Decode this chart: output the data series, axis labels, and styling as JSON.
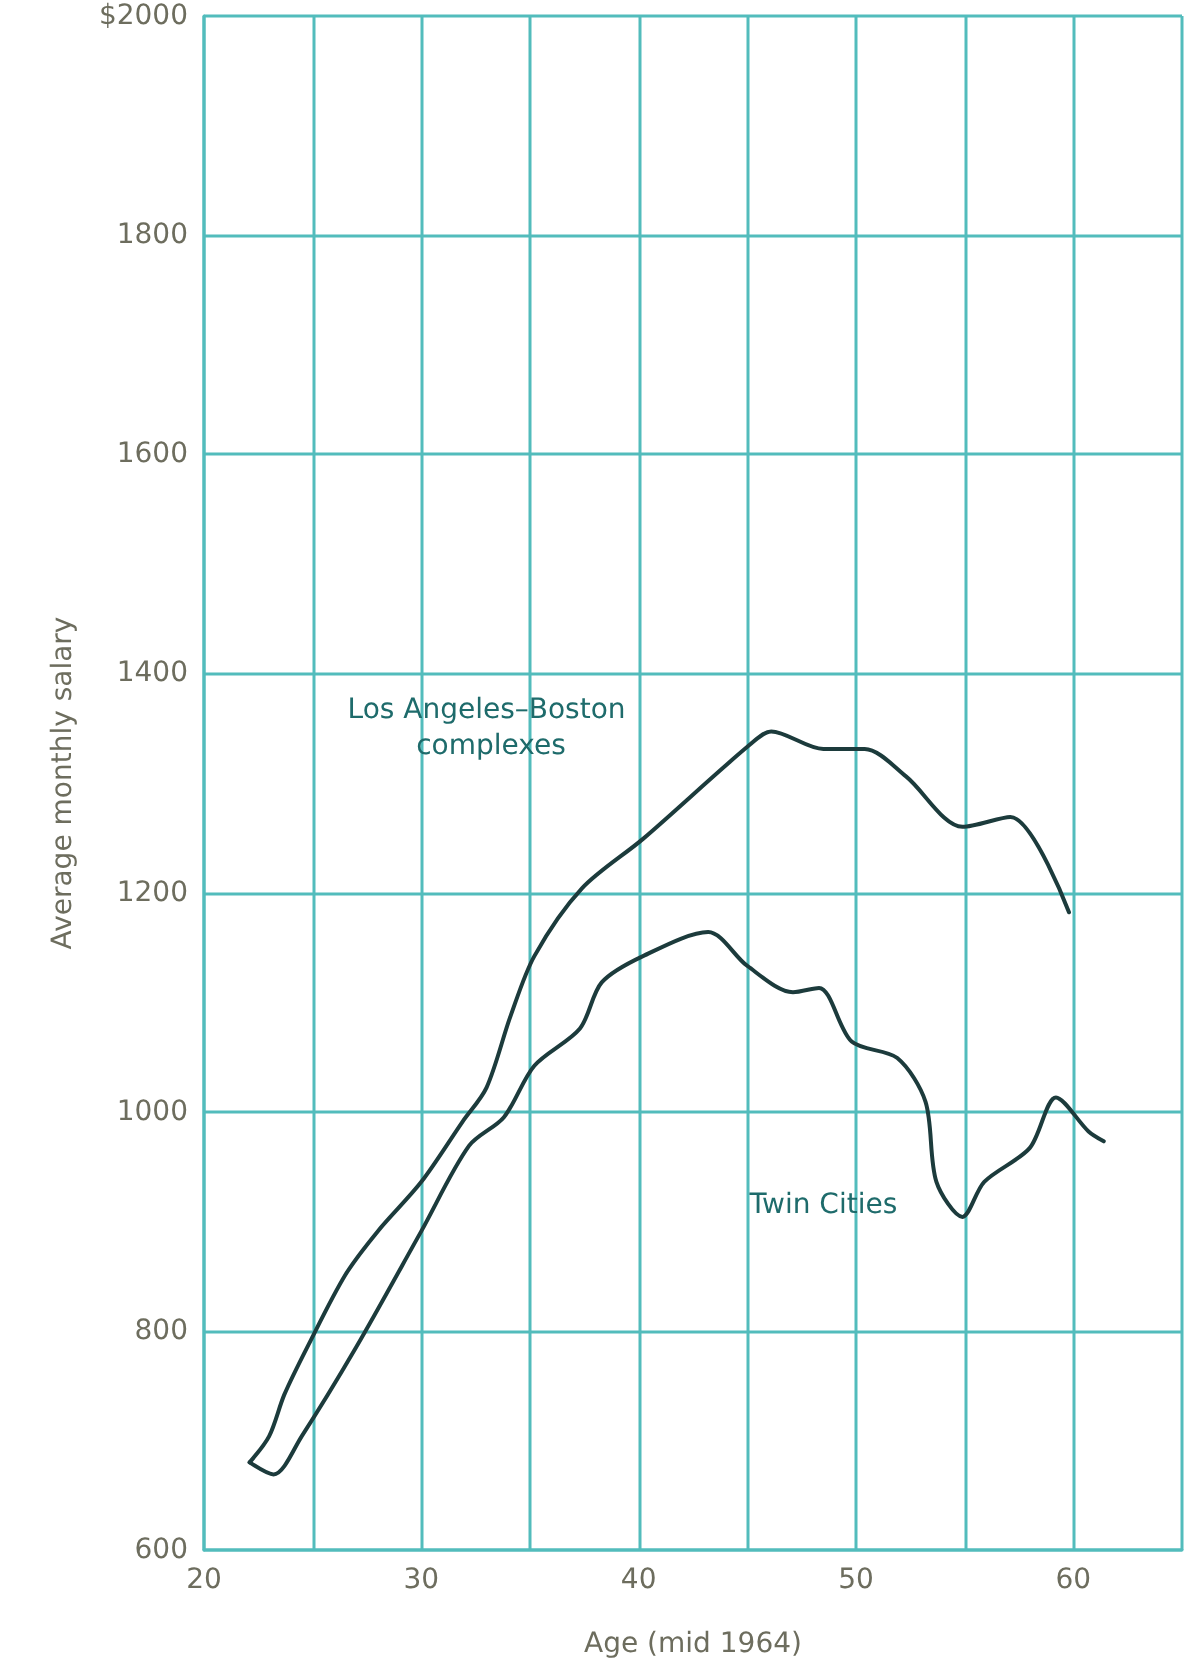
{
  "chart_data": {
    "type": "line",
    "xlabel": "Age (mid 1964)",
    "ylabel": "Average monthly salary",
    "xlim": [
      20,
      65
    ],
    "xticks": [
      20,
      {
        "value": 25,
        "label": null
      },
      30,
      {
        "value": 35,
        "label": null
      },
      40,
      {
        "value": 45,
        "label": null
      },
      50,
      {
        "value": 55,
        "label": null
      },
      60,
      {
        "value": 65,
        "label": null
      }
    ],
    "ylim": [
      600,
      2000
    ],
    "yticks": [
      600,
      800,
      1000,
      1200,
      1400,
      1600,
      1800,
      {
        "value": 2000,
        "label": "$2000"
      }
    ],
    "grid": true,
    "legend": false,
    "marker": "none",
    "line_style": "solid",
    "series": [
      {
        "name": "Los Angeles–Boston complexes",
        "color": "#1c3b3c",
        "x": [
          22.1,
          23,
          23.7,
          24.8,
          26.5,
          28,
          30,
          31.9,
          33,
          34.1,
          35.2,
          37.4,
          40.2,
          45,
          46.1,
          48.5,
          50.4,
          52.3,
          54.9,
          57.1,
          59.8
        ],
        "values": [
          680,
          704,
          742,
          787,
          851,
          891,
          936,
          991,
          1022,
          1087,
          1142,
          1204,
          1249,
          1333,
          1347,
          1331,
          1331,
          1306,
          1260,
          1269,
          1182
        ]
      },
      {
        "name": "Twin Cities",
        "color": "#1c3b3c",
        "x": [
          22.1,
          23.2,
          24.5,
          27,
          30,
          32.2,
          33.8,
          35.2,
          37.3,
          38.3,
          40.2,
          43.2,
          45,
          47.1,
          48.3,
          49.8,
          51.9,
          53.2,
          53.7,
          54.9,
          55.9,
          58,
          59.2,
          60.7,
          61.4
        ],
        "values": [
          680,
          669,
          704,
          785,
          891,
          969,
          995,
          1042,
          1076,
          1118,
          1142,
          1164,
          1133,
          1109,
          1113,
          1064,
          1049,
          1009,
          936,
          904,
          936,
          967,
          1013,
          982,
          973
        ]
      }
    ]
  }
}
